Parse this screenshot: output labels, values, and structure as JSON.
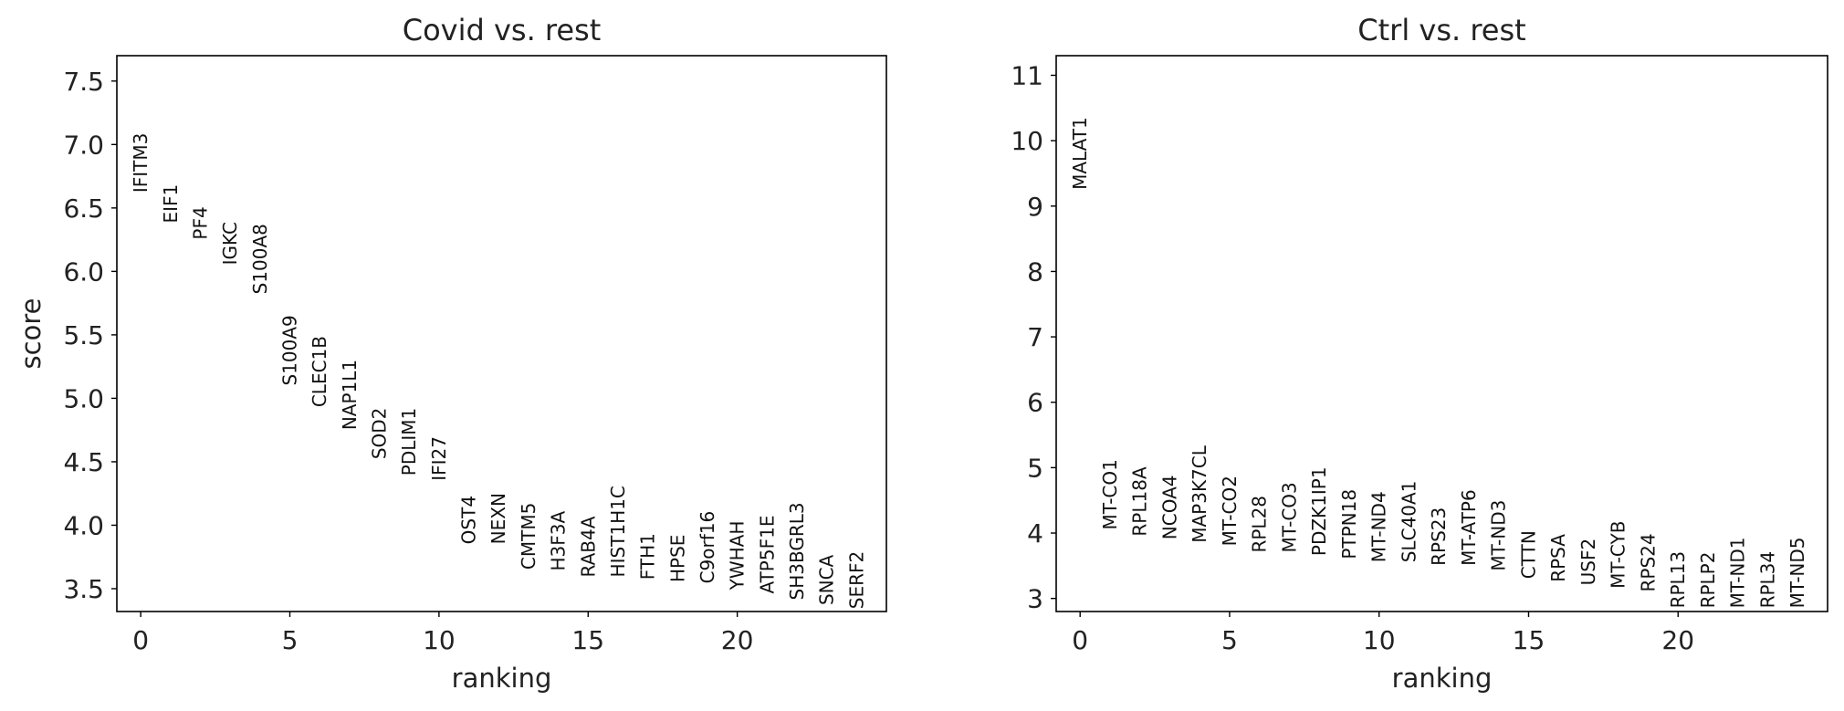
{
  "chart_data": [
    {
      "type": "scatter",
      "title": "Covid vs. rest",
      "xlabel": "ranking",
      "ylabel": "score",
      "xlim": [
        -0.8,
        25.0
      ],
      "ylim": [
        3.32,
        7.7
      ],
      "xticks": [
        0,
        5,
        10,
        15,
        20
      ],
      "yticks": [
        3.5,
        4.0,
        4.5,
        5.0,
        5.5,
        6.0,
        6.5,
        7.0,
        7.5
      ],
      "ytick_labels": [
        "3.5",
        "4.0",
        "4.5",
        "5.0",
        "5.5",
        "6.0",
        "6.5",
        "7.0",
        "7.5"
      ],
      "genes": [
        "IFITM3",
        "EIF1",
        "PF4",
        "IGKC",
        "S100A8",
        "S100A9",
        "CLEC1B",
        "NAP1L1",
        "SOD2",
        "PDLIM1",
        "IFI27",
        "OST4",
        "NEXN",
        "CMTM5",
        "H3F3A",
        "RAB4A",
        "HIST1H1C",
        "FTH1",
        "HPSE",
        "C9orf16",
        "YWHAH",
        "ATP5F1E",
        "SH3BGRL3",
        "SNCA",
        "SERF2"
      ],
      "scores": [
        6.62,
        6.38,
        6.25,
        6.05,
        5.82,
        5.1,
        4.93,
        4.75,
        4.52,
        4.39,
        4.35,
        3.85,
        3.85,
        3.65,
        3.64,
        3.59,
        3.59,
        3.57,
        3.55,
        3.54,
        3.49,
        3.46,
        3.41,
        3.37,
        3.34
      ]
    },
    {
      "type": "scatter",
      "title": "Ctrl vs. rest",
      "xlabel": "ranking",
      "ylabel": "",
      "xlim": [
        -0.8,
        25.0
      ],
      "ylim": [
        2.8,
        11.3
      ],
      "xticks": [
        0,
        5,
        10,
        15,
        20
      ],
      "yticks": [
        3,
        4,
        5,
        6,
        7,
        8,
        9,
        10,
        11
      ],
      "ytick_labels": [
        "3",
        "4",
        "5",
        "6",
        "7",
        "8",
        "9",
        "10",
        "11"
      ],
      "genes": [
        "MALAT1",
        "MT-CO1",
        "RPL18A",
        "NCOA4",
        "MAP3K7CL",
        "MT-CO2",
        "RPL28",
        "MT-CO3",
        "PDZK1IP1",
        "PTPN18",
        "MT-ND4",
        "SLC40A1",
        "RPS23",
        "MT-ATP6",
        "MT-ND3",
        "CTTN",
        "RPSA",
        "USF2",
        "MT-CYB",
        "RPS24",
        "RPL13",
        "RPLP2",
        "MT-ND1",
        "RPL34",
        "MT-ND5"
      ],
      "scores": [
        9.25,
        4.05,
        3.95,
        3.9,
        3.85,
        3.8,
        3.7,
        3.7,
        3.65,
        3.6,
        3.55,
        3.55,
        3.5,
        3.5,
        3.42,
        3.3,
        3.25,
        3.2,
        3.15,
        3.1,
        2.85,
        2.85,
        2.85,
        2.85,
        2.85
      ]
    }
  ]
}
